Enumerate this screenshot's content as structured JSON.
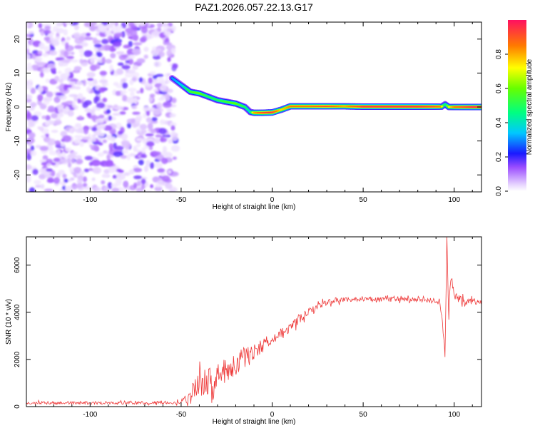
{
  "figure": {
    "title": "PAZ1.2026.057.22.13.G17"
  },
  "chart_data": [
    {
      "type": "heatmap",
      "name": "spectrogram",
      "xlabel": "Height of straight line (km)",
      "ylabel": "Frequency (Hz)",
      "xlim": [
        -135,
        115
      ],
      "ylim": [
        -25,
        25
      ],
      "xticks": [
        -100,
        -50,
        0,
        50,
        100
      ],
      "yticks": [
        -20,
        -10,
        0,
        10,
        20
      ],
      "colorbar": {
        "label": "Normalized spectral amplitude",
        "range": [
          0.0,
          1.0
        ],
        "ticks": [
          0.0,
          0.2,
          0.4,
          0.6,
          0.8
        ]
      },
      "noise_region_x": [
        -135,
        -53
      ],
      "ridge": {
        "x": [
          -55,
          -50,
          -45,
          -40,
          -35,
          -30,
          -25,
          -20,
          -15,
          -12,
          -10,
          -5,
          0,
          5,
          10,
          20,
          30,
          40,
          50,
          60,
          70,
          80,
          90,
          93,
          95,
          97,
          100,
          110,
          115
        ],
        "freq": [
          8.5,
          6.5,
          4.5,
          4.0,
          3.0,
          2.0,
          1.5,
          1.0,
          0.0,
          -1.5,
          -1.7,
          -1.7,
          -1.6,
          -0.8,
          0.2,
          0.2,
          0.2,
          0.2,
          0.1,
          0.1,
          0.1,
          0.1,
          0.1,
          0.1,
          0.8,
          0.0,
          0.0,
          0.0,
          0.0
        ],
        "amp": [
          0.3,
          0.35,
          0.55,
          0.6,
          0.5,
          0.5,
          0.55,
          0.6,
          0.5,
          0.4,
          0.8,
          0.9,
          0.95,
          0.75,
          0.85,
          0.85,
          0.9,
          0.8,
          0.95,
          0.95,
          0.95,
          0.95,
          0.9,
          0.85,
          0.4,
          0.7,
          0.85,
          0.95,
          0.95
        ]
      }
    },
    {
      "type": "line",
      "name": "snr",
      "xlabel": "Height of straight line (km)",
      "ylabel": "SNR (10 * v/v)",
      "xlim": [
        -135,
        115
      ],
      "ylim": [
        0,
        7200
      ],
      "xticks": [
        -100,
        -50,
        0,
        50,
        100
      ],
      "yticks": [
        0,
        2000,
        4000,
        6000
      ],
      "series": [
        {
          "name": "SNR",
          "color": "#ee3a3a",
          "x": [
            -135,
            -120,
            -100,
            -80,
            -60,
            -55,
            -50,
            -45,
            -40,
            -35,
            -30,
            -25,
            -20,
            -15,
            -10,
            -5,
            0,
            5,
            10,
            15,
            20,
            25,
            30,
            35,
            40,
            50,
            60,
            70,
            80,
            90,
            92,
            94,
            95,
            96,
            97,
            98,
            100,
            105,
            110,
            115
          ],
          "values": [
            150,
            150,
            160,
            150,
            170,
            170,
            200,
            500,
            900,
            1100,
            1300,
            1500,
            1800,
            2100,
            2350,
            2600,
            2900,
            3100,
            3350,
            3700,
            4000,
            4250,
            4450,
            4500,
            4550,
            4550,
            4550,
            4550,
            4520,
            4500,
            4400,
            3200,
            2200,
            7100,
            3500,
            5600,
            4700,
            4500,
            4450,
            4400
          ],
          "noise_amplitude": [
            80,
            80,
            80,
            80,
            80,
            80,
            100,
            500,
            700,
            700,
            700,
            700,
            600,
            550,
            450,
            400,
            300,
            250,
            250,
            220,
            200,
            180,
            150,
            150,
            120,
            120,
            120,
            120,
            120,
            130,
            150,
            300,
            300,
            200,
            300,
            300,
            250,
            180,
            150,
            150
          ]
        }
      ]
    }
  ]
}
